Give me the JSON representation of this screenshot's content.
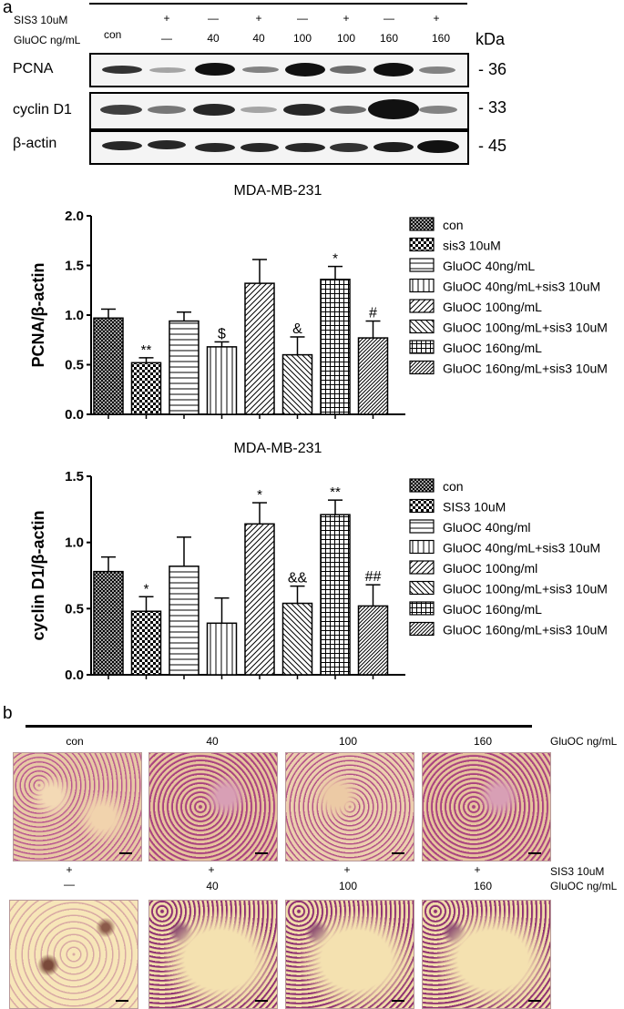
{
  "panel_a": {
    "label": "a",
    "header": {
      "sis3_label": "SIS3 10uM",
      "gluoc_label": "GluOC ng/mL",
      "con_label": "con",
      "sis3_marks": [
        "+",
        "—",
        "+",
        "—",
        "+",
        "—",
        "+"
      ],
      "gluoc_values": [
        "—",
        "40",
        "40",
        "100",
        "100",
        "160",
        "160"
      ],
      "kda_label": "kDa"
    },
    "blots": [
      {
        "name": "PCNA",
        "kda": "- 36"
      },
      {
        "name": "cyclin D1",
        "kda": "- 33"
      },
      {
        "name": "β-actin",
        "kda": "- 45"
      }
    ]
  },
  "chart_data": [
    {
      "type": "bar",
      "title": "MDA-MB-231",
      "ylabel": "PCNA/β-actin",
      "xlabel": "",
      "ylim": [
        0,
        2.0
      ],
      "yticks": [
        "0.0",
        "0.5",
        "1.0",
        "1.5",
        "2.0"
      ],
      "categories": [
        "con",
        "sis3 10uM",
        "GluOC 40ng/mL",
        "GluOC 40ng/mL+sis3 10uM",
        "GluOC 100ng/mL",
        "GluOC 100ng/mL+sis3 10uM",
        "GluOC 160ng/mL",
        "GluOC 160ng/mL+sis3 10uM"
      ],
      "values": [
        0.97,
        0.52,
        0.94,
        0.68,
        1.32,
        0.6,
        1.36,
        0.77
      ],
      "errors": [
        0.09,
        0.05,
        0.09,
        0.05,
        0.24,
        0.18,
        0.13,
        0.17
      ],
      "annotations": [
        "",
        "**",
        "",
        "$",
        "",
        "&",
        "*",
        "#"
      ],
      "patterns": [
        "crosshatch",
        "checker",
        "hlines",
        "vlines",
        "diag",
        "antidiag",
        "grid",
        "diagdense"
      ],
      "legend": [
        "con",
        "sis3 10uM",
        "GluOC 40ng/mL",
        "GluOC 40ng/mL+sis3 10uM",
        "GluOC 100ng/mL",
        "GluOC 100ng/mL+sis3 10uM",
        "GluOC 160ng/mL",
        "GluOC 160ng/mL+sis3 10uM"
      ]
    },
    {
      "type": "bar",
      "title": "MDA-MB-231",
      "ylabel": "cyclin  D1/β-actin",
      "xlabel": "",
      "ylim": [
        0,
        1.5
      ],
      "yticks": [
        "0.0",
        "0.5",
        "1.0",
        "1.5"
      ],
      "categories": [
        "con",
        "SIS3 10uM",
        "GluOC 40ng/ml",
        "GluOC 40ng/mL+sis3 10uM",
        "GluOC 100ng/ml",
        "GluOC 100ng/mL+sis3 10uM",
        "GluOC 160ng/mL",
        "GluOC 160ng/mL+sis3 10uM"
      ],
      "values": [
        0.78,
        0.48,
        0.82,
        0.39,
        1.14,
        0.54,
        1.21,
        0.52
      ],
      "errors": [
        0.11,
        0.11,
        0.22,
        0.19,
        0.16,
        0.13,
        0.11,
        0.16
      ],
      "annotations": [
        "",
        "*",
        "",
        "",
        "*",
        "&&",
        "**",
        "##"
      ],
      "patterns": [
        "crosshatch",
        "checker",
        "hlines",
        "vlines",
        "diag",
        "antidiag",
        "grid",
        "diagdense"
      ],
      "legend": [
        "con",
        "SIS3 10uM",
        "GluOC 40ng/ml",
        "GluOC 40ng/mL+sis3 10uM",
        "GluOC 100ng/ml",
        "GluOC 100ng/mL+sis3 10uM",
        "GluOC 160ng/mL",
        "GluOC 160ng/mL+sis3 10uM"
      ]
    }
  ],
  "panel_b": {
    "label": "b",
    "top_row_labels": [
      "con",
      "40",
      "100",
      "160"
    ],
    "top_row_side": "GluOC ng/mL",
    "bottom_plus": [
      "+",
      "+",
      "+",
      "+"
    ],
    "bottom_gluoc": [
      "—",
      "40",
      "100",
      "160"
    ],
    "bottom_side_sis3": "SIS3 10uM",
    "bottom_side_gluoc": "GluOC ng/mL"
  }
}
